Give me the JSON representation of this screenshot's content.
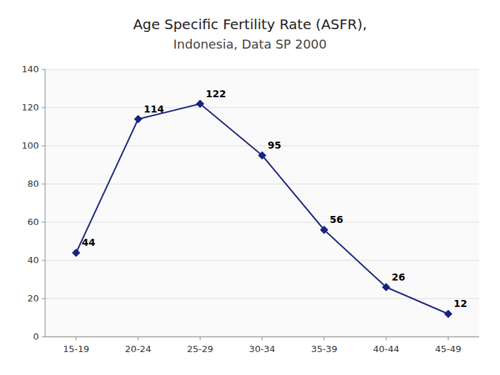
{
  "chart_data": {
    "type": "line",
    "title": "Age Specific Fertility Rate (ASFR),",
    "subtitle": "Indonesia, Data SP 2000",
    "categories": [
      "15-19",
      "20-24",
      "25-29",
      "30-34",
      "35-39",
      "40-44",
      "45-49"
    ],
    "values": [
      44,
      114,
      122,
      95,
      56,
      26,
      12
    ],
    "color": "#1A237E",
    "marker": "diamond",
    "ylim": [
      0,
      140
    ],
    "yticks": [
      0,
      20,
      40,
      60,
      80,
      100,
      120,
      140
    ],
    "grid": true,
    "data_labels": true
  }
}
